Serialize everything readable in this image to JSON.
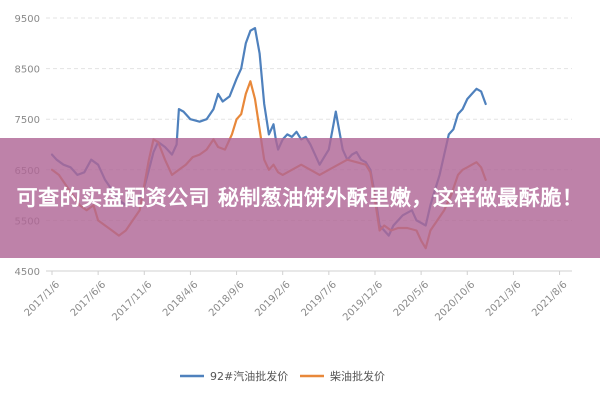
{
  "headline": "可查的实盘配资公司 秘制葱油饼外酥里嫩，这样做最酥脆！",
  "chart_data": {
    "type": "line",
    "ylim": [
      4500,
      9500
    ],
    "yticks": [
      4500,
      5500,
      6500,
      7500,
      8500,
      9500
    ],
    "x_tick_labels": [
      "2017/1/6",
      "2017/6/6",
      "2017/11/6",
      "2018/4/6",
      "2018/9/6",
      "2019/2/6",
      "2019/7/6",
      "2019/12/6",
      "2020/5/6",
      "2020/10/6",
      "2021/3/6",
      "2021/8/6"
    ],
    "legend_position": "bottom",
    "grid": true,
    "series": [
      {
        "name": "92#汽油批发价",
        "color": "#4f81bd",
        "points": [
          [
            0,
            6800
          ],
          [
            0.1,
            6700
          ],
          [
            0.25,
            6600
          ],
          [
            0.4,
            6550
          ],
          [
            0.55,
            6400
          ],
          [
            0.7,
            6450
          ],
          [
            0.85,
            6700
          ],
          [
            1.0,
            6600
          ],
          [
            1.15,
            6300
          ],
          [
            1.3,
            6100
          ],
          [
            1.45,
            5900
          ],
          [
            1.6,
            5800
          ],
          [
            1.75,
            5900
          ],
          [
            1.9,
            5950
          ],
          [
            2.0,
            6150
          ],
          [
            2.1,
            6500
          ],
          [
            2.2,
            6850
          ],
          [
            2.3,
            7050
          ],
          [
            2.45,
            6950
          ],
          [
            2.6,
            6800
          ],
          [
            2.7,
            7000
          ],
          [
            2.75,
            7700
          ],
          [
            2.85,
            7650
          ],
          [
            3.0,
            7500
          ],
          [
            3.2,
            7450
          ],
          [
            3.35,
            7500
          ],
          [
            3.5,
            7700
          ],
          [
            3.6,
            8000
          ],
          [
            3.7,
            7850
          ],
          [
            3.85,
            7950
          ],
          [
            4.0,
            8300
          ],
          [
            4.1,
            8500
          ],
          [
            4.2,
            9000
          ],
          [
            4.3,
            9250
          ],
          [
            4.4,
            9300
          ],
          [
            4.5,
            8800
          ],
          [
            4.6,
            7800
          ],
          [
            4.7,
            7200
          ],
          [
            4.8,
            7400
          ],
          [
            4.85,
            7100
          ],
          [
            4.9,
            6900
          ],
          [
            5.0,
            7100
          ],
          [
            5.1,
            7200
          ],
          [
            5.2,
            7150
          ],
          [
            5.3,
            7250
          ],
          [
            5.4,
            7100
          ],
          [
            5.5,
            7150
          ],
          [
            5.6,
            7000
          ],
          [
            5.7,
            6800
          ],
          [
            5.8,
            6600
          ],
          [
            5.9,
            6750
          ],
          [
            6.0,
            6900
          ],
          [
            6.1,
            7400
          ],
          [
            6.15,
            7650
          ],
          [
            6.2,
            7400
          ],
          [
            6.3,
            6900
          ],
          [
            6.4,
            6700
          ],
          [
            6.5,
            6800
          ],
          [
            6.6,
            6850
          ],
          [
            6.7,
            6700
          ],
          [
            6.8,
            6650
          ],
          [
            6.9,
            6500
          ],
          [
            7.0,
            6000
          ],
          [
            7.1,
            5400
          ],
          [
            7.2,
            5300
          ],
          [
            7.3,
            5200
          ],
          [
            7.4,
            5400
          ],
          [
            7.5,
            5500
          ],
          [
            7.6,
            5600
          ],
          [
            7.7,
            5650
          ],
          [
            7.8,
            5700
          ],
          [
            7.9,
            5500
          ],
          [
            8.0,
            5450
          ],
          [
            8.1,
            5400
          ],
          [
            8.2,
            5800
          ],
          [
            8.3,
            6100
          ],
          [
            8.4,
            6400
          ],
          [
            8.5,
            6800
          ],
          [
            8.6,
            7200
          ],
          [
            8.7,
            7300
          ],
          [
            8.8,
            7600
          ],
          [
            8.9,
            7700
          ],
          [
            9.0,
            7900
          ],
          [
            9.1,
            8000
          ],
          [
            9.2,
            8100
          ],
          [
            9.3,
            8050
          ],
          [
            9.4,
            7800
          ]
        ]
      },
      {
        "name": "柴油批发价",
        "color": "#e8883a",
        "points": [
          [
            0,
            6500
          ],
          [
            0.15,
            6400
          ],
          [
            0.3,
            6200
          ],
          [
            0.45,
            6000
          ],
          [
            0.6,
            5800
          ],
          [
            0.75,
            5700
          ],
          [
            0.9,
            5800
          ],
          [
            1.0,
            5500
          ],
          [
            1.15,
            5400
          ],
          [
            1.3,
            5300
          ],
          [
            1.45,
            5200
          ],
          [
            1.6,
            5300
          ],
          [
            1.75,
            5500
          ],
          [
            1.9,
            5700
          ],
          [
            2.0,
            6200
          ],
          [
            2.1,
            6700
          ],
          [
            2.2,
            7100
          ],
          [
            2.3,
            7050
          ],
          [
            2.45,
            6700
          ],
          [
            2.6,
            6400
          ],
          [
            2.75,
            6500
          ],
          [
            2.9,
            6600
          ],
          [
            3.05,
            6750
          ],
          [
            3.2,
            6800
          ],
          [
            3.35,
            6900
          ],
          [
            3.5,
            7100
          ],
          [
            3.6,
            6950
          ],
          [
            3.75,
            6900
          ],
          [
            3.9,
            7200
          ],
          [
            4.0,
            7500
          ],
          [
            4.1,
            7600
          ],
          [
            4.2,
            8000
          ],
          [
            4.3,
            8250
          ],
          [
            4.4,
            7900
          ],
          [
            4.5,
            7300
          ],
          [
            4.6,
            6700
          ],
          [
            4.7,
            6500
          ],
          [
            4.8,
            6600
          ],
          [
            4.9,
            6450
          ],
          [
            5.0,
            6400
          ],
          [
            5.2,
            6500
          ],
          [
            5.4,
            6600
          ],
          [
            5.6,
            6500
          ],
          [
            5.8,
            6400
          ],
          [
            6.0,
            6500
          ],
          [
            6.2,
            6600
          ],
          [
            6.4,
            6700
          ],
          [
            6.6,
            6650
          ],
          [
            6.8,
            6600
          ],
          [
            6.9,
            6450
          ],
          [
            7.0,
            5900
          ],
          [
            7.1,
            5300
          ],
          [
            7.2,
            5400
          ],
          [
            7.35,
            5300
          ],
          [
            7.5,
            5350
          ],
          [
            7.7,
            5350
          ],
          [
            7.9,
            5300
          ],
          [
            8.0,
            5100
          ],
          [
            8.1,
            4950
          ],
          [
            8.2,
            5300
          ],
          [
            8.35,
            5500
          ],
          [
            8.5,
            5700
          ],
          [
            8.65,
            6000
          ],
          [
            8.8,
            6400
          ],
          [
            8.9,
            6500
          ],
          [
            9.0,
            6550
          ],
          [
            9.1,
            6600
          ],
          [
            9.2,
            6650
          ],
          [
            9.3,
            6550
          ],
          [
            9.4,
            6300
          ]
        ]
      }
    ]
  }
}
